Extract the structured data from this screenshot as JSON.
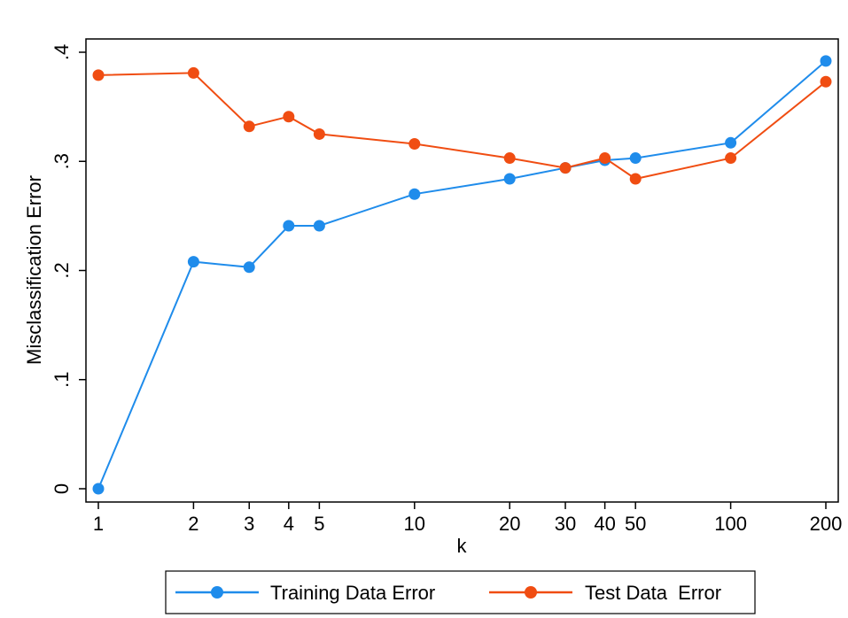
{
  "chart_data": {
    "type": "line",
    "xlabel": "k",
    "ylabel": "Misclassification Error",
    "x_scale": "log",
    "x": [
      1,
      2,
      3,
      4,
      5,
      10,
      20,
      30,
      40,
      50,
      100,
      200
    ],
    "x_tick_labels": [
      "1",
      "2",
      "3",
      "4",
      "5",
      "10",
      "20",
      "30",
      "40",
      "50",
      "100",
      "200"
    ],
    "ylim": [
      0,
      0.4
    ],
    "y_ticks": [
      0,
      0.1,
      0.2,
      0.3,
      0.4
    ],
    "y_tick_labels": [
      "0",
      ".1",
      ".2",
      ".3",
      ".4"
    ],
    "grid": false,
    "legend_position": "bottom",
    "series": [
      {
        "name": "Training Data Error",
        "color": "#1f8ceb",
        "values": [
          0.0,
          0.208,
          0.203,
          0.241,
          0.241,
          0.27,
          0.284,
          0.294,
          0.301,
          0.303,
          0.317,
          0.392
        ]
      },
      {
        "name": "Test Data  Error",
        "color": "#f04d12",
        "values": [
          0.379,
          0.381,
          0.332,
          0.341,
          0.325,
          0.316,
          0.303,
          0.294,
          0.303,
          0.284,
          0.303,
          0.373
        ]
      }
    ]
  }
}
